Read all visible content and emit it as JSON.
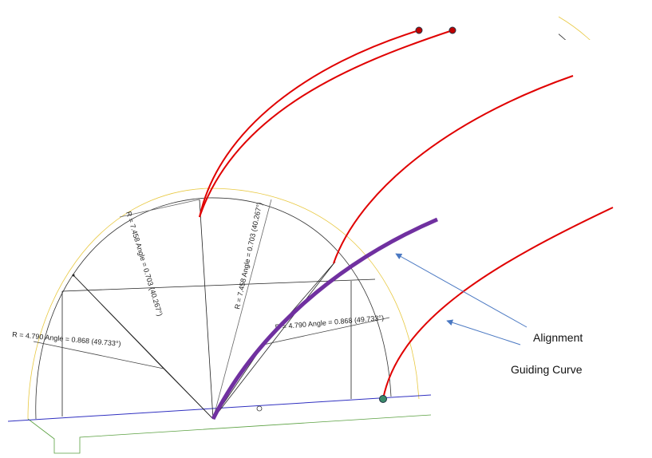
{
  "sections": [
    {
      "labels": [
        "R = 7.458  Angle = 0.703 (40.267°)",
        "R = 7.458  Angle = 0.703 (40.267°)",
        "R = 4.790  Angle = 0.868 (49.733°)",
        "R = 4.790  Angle = 0.868 (49.733°)"
      ]
    },
    {
      "labels": [
        "R = 7.458  Angle = 0.703 (40.267°)",
        "R = 7.458  Angle = 0.703 (40.267°)",
        "R = 4.790  Angle = 0.868 (49.733°)",
        "R = 4.790  Angle = 0.868 (49.733°)"
      ]
    }
  ],
  "annotations": [
    "Alignment",
    "Guiding Curve"
  ]
}
